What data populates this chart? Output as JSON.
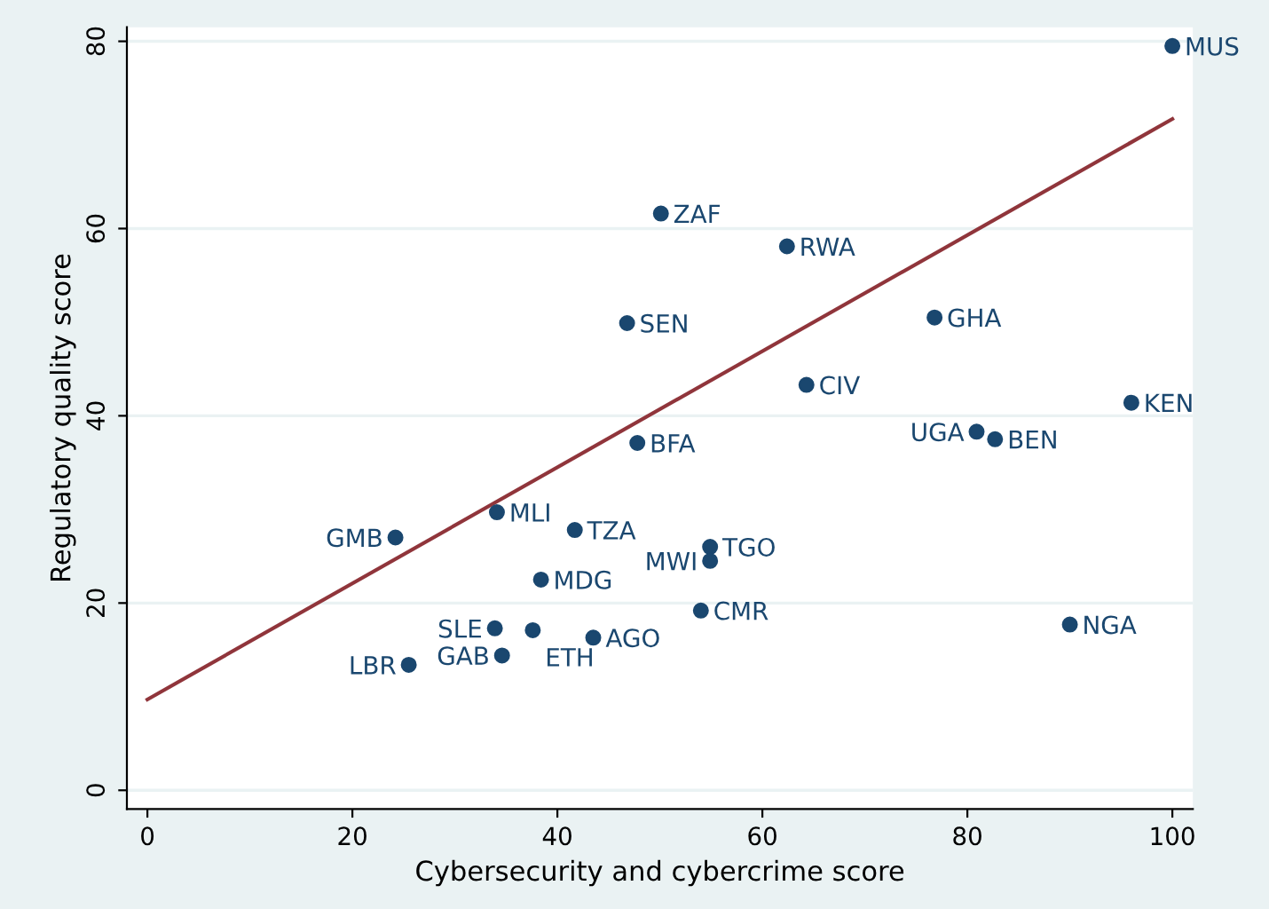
{
  "chart_data": {
    "type": "scatter",
    "xlabel": "Cybersecurity and cybercrime score",
    "ylabel": "Regulatory quality score",
    "xlim": [
      -2,
      102
    ],
    "ylim": [
      -2,
      81.5
    ],
    "xticks": [
      0,
      20,
      40,
      60,
      80,
      100
    ],
    "yticks": [
      0,
      20,
      40,
      60,
      80
    ],
    "grid": "y",
    "series": [
      {
        "marker": "circle",
        "color": "#1a476f",
        "x": [
          100,
          50.1,
          62.4,
          46.8,
          76.8,
          64.3,
          96.0,
          80.9,
          82.7,
          47.8,
          34.1,
          24.2,
          41.7,
          54.9,
          54.9,
          38.4,
          54.0,
          90.0,
          33.9,
          37.6,
          43.5,
          34.6,
          25.5
        ],
        "values": [
          79.5,
          61.6,
          58.1,
          49.9,
          50.5,
          43.3,
          41.4,
          38.3,
          37.5,
          37.1,
          29.7,
          27.0,
          27.8,
          26.0,
          24.5,
          22.5,
          19.2,
          17.7,
          17.3,
          17.1,
          16.3,
          14.4,
          13.4
        ]
      },
      {
        "type": "line",
        "color": "#90353b",
        "x": [
          0,
          100
        ],
        "values": [
          9.7,
          71.7
        ]
      }
    ],
    "annotations": [
      {
        "text": "MUS",
        "x": 100,
        "y": 79.5
      },
      {
        "text": "ZAF",
        "x": 50.1,
        "y": 61.6
      },
      {
        "text": "RWA",
        "x": 62.4,
        "y": 58.1
      },
      {
        "text": "SEN",
        "x": 46.8,
        "y": 49.9
      },
      {
        "text": "GHA",
        "x": 76.8,
        "y": 50.5
      },
      {
        "text": "CIV",
        "x": 64.3,
        "y": 43.3
      },
      {
        "text": "KEN",
        "x": 96.0,
        "y": 41.4
      },
      {
        "text": "UGA",
        "x": 80.9,
        "y": 38.3
      },
      {
        "text": "BEN",
        "x": 82.7,
        "y": 37.5
      },
      {
        "text": "BFA",
        "x": 47.8,
        "y": 37.1
      },
      {
        "text": "MLI",
        "x": 34.1,
        "y": 29.7
      },
      {
        "text": "GMB",
        "x": 24.2,
        "y": 27.0
      },
      {
        "text": "TZA",
        "x": 41.7,
        "y": 27.8
      },
      {
        "text": "TGO",
        "x": 54.9,
        "y": 26.0
      },
      {
        "text": "MWI",
        "x": 54.9,
        "y": 24.5
      },
      {
        "text": "MDG",
        "x": 38.4,
        "y": 22.5
      },
      {
        "text": "CMR",
        "x": 54.0,
        "y": 19.2
      },
      {
        "text": "NGA",
        "x": 90.0,
        "y": 17.7
      },
      {
        "text": "SLE",
        "x": 33.9,
        "y": 17.3
      },
      {
        "text": "ETH",
        "x": 37.6,
        "y": 17.1
      },
      {
        "text": "AGO",
        "x": 43.5,
        "y": 16.3
      },
      {
        "text": "GAB",
        "x": 34.6,
        "y": 14.4
      },
      {
        "text": "LBR",
        "x": 25.5,
        "y": 13.4
      }
    ]
  }
}
